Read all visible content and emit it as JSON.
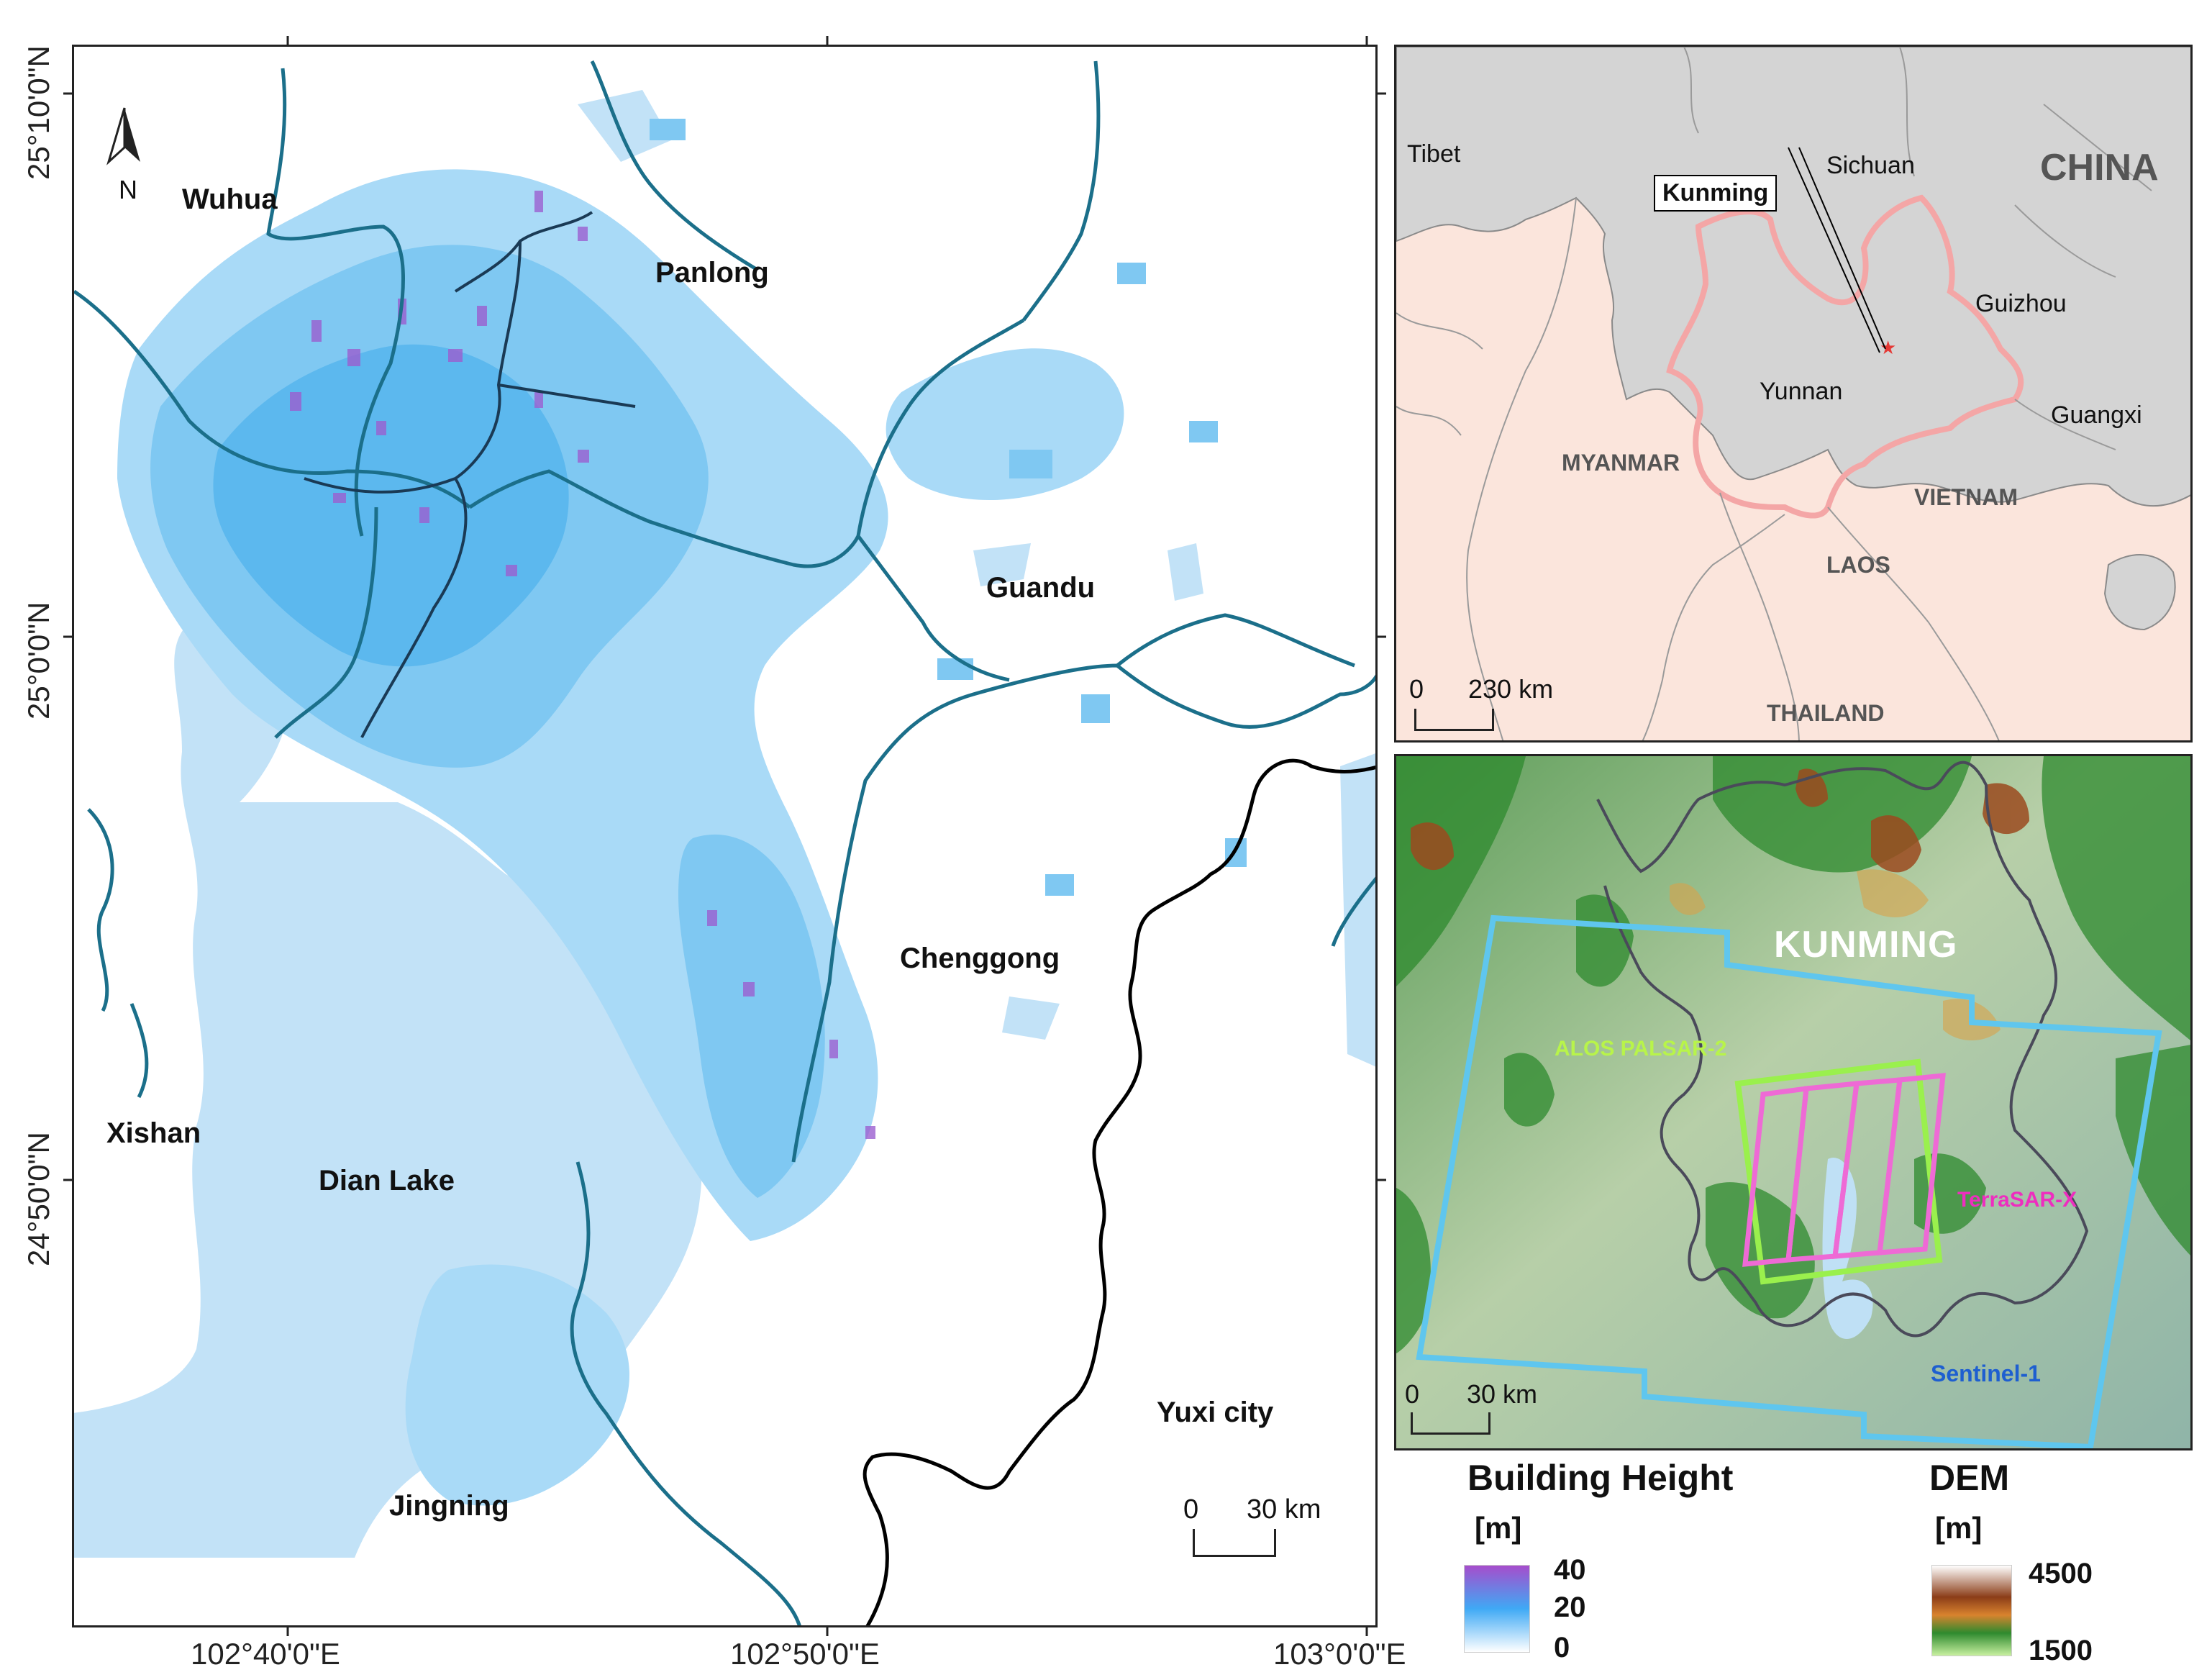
{
  "main_map": {
    "districts": [
      "Wuhua",
      "Panlong",
      "Guandu",
      "Chenggong",
      "Xishan",
      "Dian Lake",
      "Jingning",
      "Yuxi city"
    ],
    "north_label": "N",
    "scale": {
      "start": "0",
      "end": "30 km"
    },
    "lat_labels": [
      "25°10'0\"N",
      "25°0'0\"N",
      "24°50'0\"N"
    ],
    "lon_labels": [
      "102°40'0\"E",
      "102°50'0\"E",
      "103°0'0\"E"
    ]
  },
  "inset_map": {
    "regions": [
      "Tibet",
      "Sichuan",
      "CHINA",
      "Guizhou",
      "Yunnan",
      "Guangxi",
      "MYANMAR",
      "VIETNAM",
      "LAOS",
      "THAILAND"
    ],
    "city_callout": "Kunming",
    "scale": {
      "start": "0",
      "end": "230 km"
    },
    "colors": {
      "china": "#d4d4d4",
      "neighbors": "#fbe5dc",
      "yunnan_border": "#f4a6a6",
      "star": "#e53935"
    }
  },
  "dem_map": {
    "city_label": "KUNMING",
    "sensors": [
      {
        "name": "ALOS PALSAR-2",
        "color": "#9af04d"
      },
      {
        "name": "TerraSAR-X",
        "color": "#ee2dbf"
      },
      {
        "name": "Sentinel-1",
        "color": "#1e5fd0"
      }
    ],
    "scale": {
      "start": "0",
      "end": "30 km"
    }
  },
  "legend_building": {
    "title": "Building Height",
    "unit": "[m]",
    "values": [
      "40",
      "20",
      "0"
    ],
    "colors": [
      "#a64dcc",
      "#3fa9f5",
      "#ffffff"
    ]
  },
  "legend_dem": {
    "title": "DEM",
    "unit": "[m]",
    "values": [
      "4500",
      "1500"
    ],
    "colors": [
      "#ffffff",
      "#8b3d18",
      "#d9832e",
      "#2e8a2e",
      "#c8f0a0"
    ]
  },
  "colors": {
    "water": "#c2e2f7",
    "district_border": "#1b6f8a",
    "yuxi_border": "#000000",
    "urban": "#7fc8f2"
  }
}
